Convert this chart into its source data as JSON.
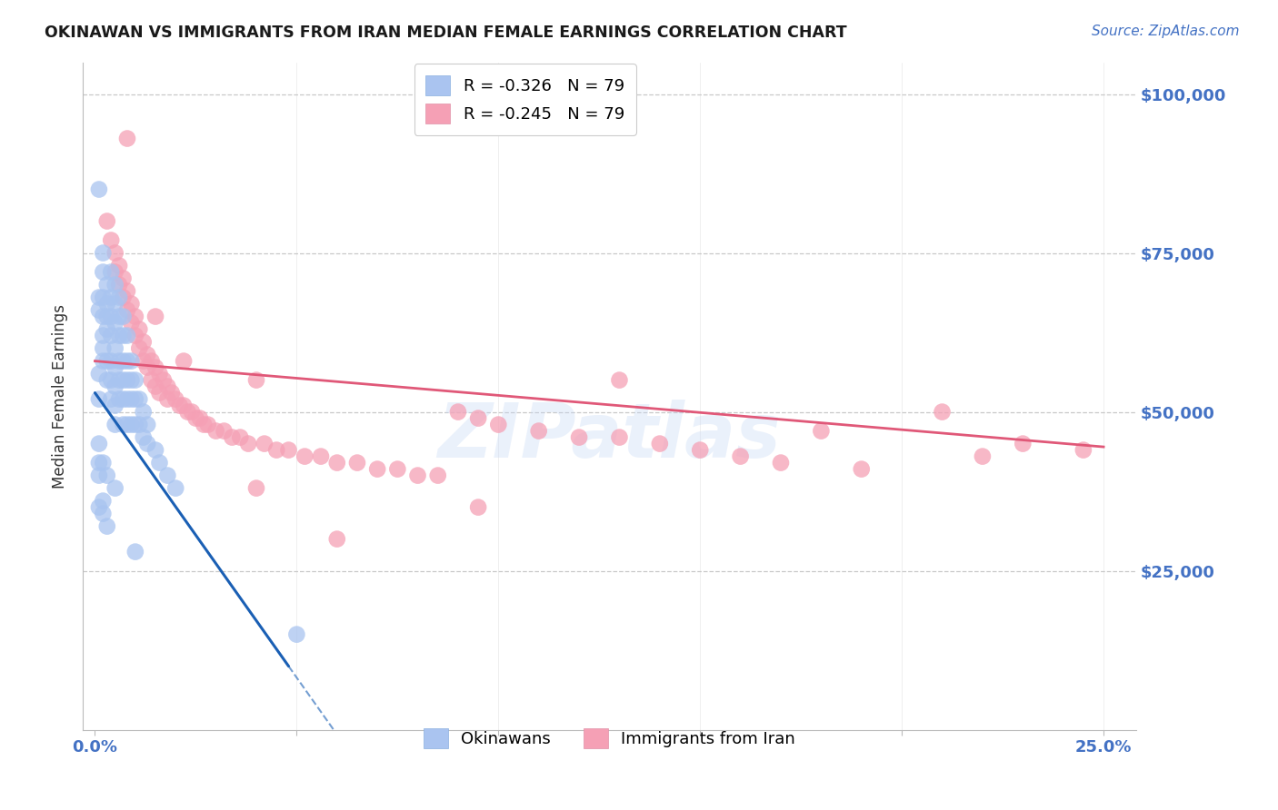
{
  "title": "OKINAWAN VS IMMIGRANTS FROM IRAN MEDIAN FEMALE EARNINGS CORRELATION CHART",
  "source": "Source: ZipAtlas.com",
  "ylabel": "Median Female Earnings",
  "yticks": [
    0,
    25000,
    50000,
    75000,
    100000
  ],
  "ytick_labels": [
    "",
    "$25,000",
    "$50,000",
    "$75,000",
    "$100,000"
  ],
  "legend_entries": [
    {
      "label": "R = -0.326   N = 79",
      "color": "#aac4f0"
    },
    {
      "label": "R = -0.245   N = 79",
      "color": "#f5a0b5"
    }
  ],
  "legend_labels_bottom": [
    "Okinawans",
    "Immigrants from Iran"
  ],
  "watermark": "ZIPatlas",
  "scatter_blue": "#a8c4f0",
  "scatter_pink": "#f5a0b5",
  "trendline_blue": "#1a5fb4",
  "trendline_pink": "#e05878",
  "background": "#ffffff",
  "grid_color": "#c8c8c8",
  "axis_color": "#4472c4",
  "title_color": "#1a1a1a",
  "xmin": 0.0,
  "xmax": 0.25,
  "ymin": 0,
  "ymax": 105000,
  "ok_trend_x0": 0.0,
  "ok_trend_y0": 53000,
  "ok_trend_x1": 0.048,
  "ok_trend_y1": 10000,
  "iran_trend_x0": 0.0,
  "iran_trend_y0": 58000,
  "iran_trend_x1": 0.25,
  "iran_trend_y1": 44500,
  "ok_points_x": [
    0.001,
    0.001,
    0.001,
    0.001,
    0.001,
    0.002,
    0.002,
    0.002,
    0.002,
    0.002,
    0.002,
    0.002,
    0.003,
    0.003,
    0.003,
    0.003,
    0.003,
    0.003,
    0.004,
    0.004,
    0.004,
    0.004,
    0.004,
    0.004,
    0.004,
    0.005,
    0.005,
    0.005,
    0.005,
    0.005,
    0.005,
    0.005,
    0.005,
    0.006,
    0.006,
    0.006,
    0.006,
    0.006,
    0.006,
    0.007,
    0.007,
    0.007,
    0.007,
    0.007,
    0.007,
    0.008,
    0.008,
    0.008,
    0.008,
    0.008,
    0.009,
    0.009,
    0.009,
    0.009,
    0.01,
    0.01,
    0.01,
    0.011,
    0.011,
    0.012,
    0.012,
    0.013,
    0.013,
    0.015,
    0.016,
    0.018,
    0.02,
    0.002,
    0.003,
    0.005,
    0.001,
    0.001,
    0.001,
    0.001,
    0.002,
    0.002,
    0.003,
    0.01,
    0.05
  ],
  "ok_points_y": [
    85000,
    68000,
    66000,
    56000,
    52000,
    75000,
    72000,
    68000,
    65000,
    62000,
    60000,
    58000,
    70000,
    67000,
    65000,
    63000,
    58000,
    55000,
    72000,
    68000,
    65000,
    62000,
    58000,
    55000,
    52000,
    70000,
    67000,
    64000,
    60000,
    57000,
    54000,
    51000,
    48000,
    68000,
    65000,
    62000,
    58000,
    55000,
    52000,
    65000,
    62000,
    58000,
    55000,
    52000,
    48000,
    62000,
    58000,
    55000,
    52000,
    48000,
    58000,
    55000,
    52000,
    48000,
    55000,
    52000,
    48000,
    52000,
    48000,
    50000,
    46000,
    48000,
    45000,
    44000,
    42000,
    40000,
    38000,
    42000,
    40000,
    38000,
    45000,
    42000,
    40000,
    35000,
    36000,
    34000,
    32000,
    28000,
    15000
  ],
  "iran_points_x": [
    0.003,
    0.004,
    0.005,
    0.005,
    0.006,
    0.006,
    0.007,
    0.007,
    0.008,
    0.008,
    0.009,
    0.009,
    0.01,
    0.01,
    0.011,
    0.011,
    0.012,
    0.012,
    0.013,
    0.013,
    0.014,
    0.014,
    0.015,
    0.015,
    0.016,
    0.016,
    0.017,
    0.018,
    0.018,
    0.019,
    0.02,
    0.021,
    0.022,
    0.023,
    0.024,
    0.025,
    0.026,
    0.027,
    0.028,
    0.03,
    0.032,
    0.034,
    0.036,
    0.038,
    0.04,
    0.042,
    0.045,
    0.048,
    0.052,
    0.056,
    0.06,
    0.065,
    0.07,
    0.075,
    0.08,
    0.085,
    0.09,
    0.095,
    0.1,
    0.11,
    0.12,
    0.13,
    0.14,
    0.15,
    0.16,
    0.17,
    0.19,
    0.21,
    0.23,
    0.245,
    0.008,
    0.015,
    0.022,
    0.04,
    0.06,
    0.095,
    0.13,
    0.18,
    0.22
  ],
  "iran_points_y": [
    80000,
    77000,
    75000,
    72000,
    73000,
    70000,
    71000,
    68000,
    69000,
    66000,
    67000,
    64000,
    65000,
    62000,
    63000,
    60000,
    61000,
    58000,
    59000,
    57000,
    58000,
    55000,
    57000,
    54000,
    56000,
    53000,
    55000,
    54000,
    52000,
    53000,
    52000,
    51000,
    51000,
    50000,
    50000,
    49000,
    49000,
    48000,
    48000,
    47000,
    47000,
    46000,
    46000,
    45000,
    55000,
    45000,
    44000,
    44000,
    43000,
    43000,
    42000,
    42000,
    41000,
    41000,
    40000,
    40000,
    50000,
    49000,
    48000,
    47000,
    46000,
    46000,
    45000,
    44000,
    43000,
    42000,
    41000,
    50000,
    45000,
    44000,
    93000,
    65000,
    58000,
    38000,
    30000,
    35000,
    55000,
    47000,
    43000
  ]
}
